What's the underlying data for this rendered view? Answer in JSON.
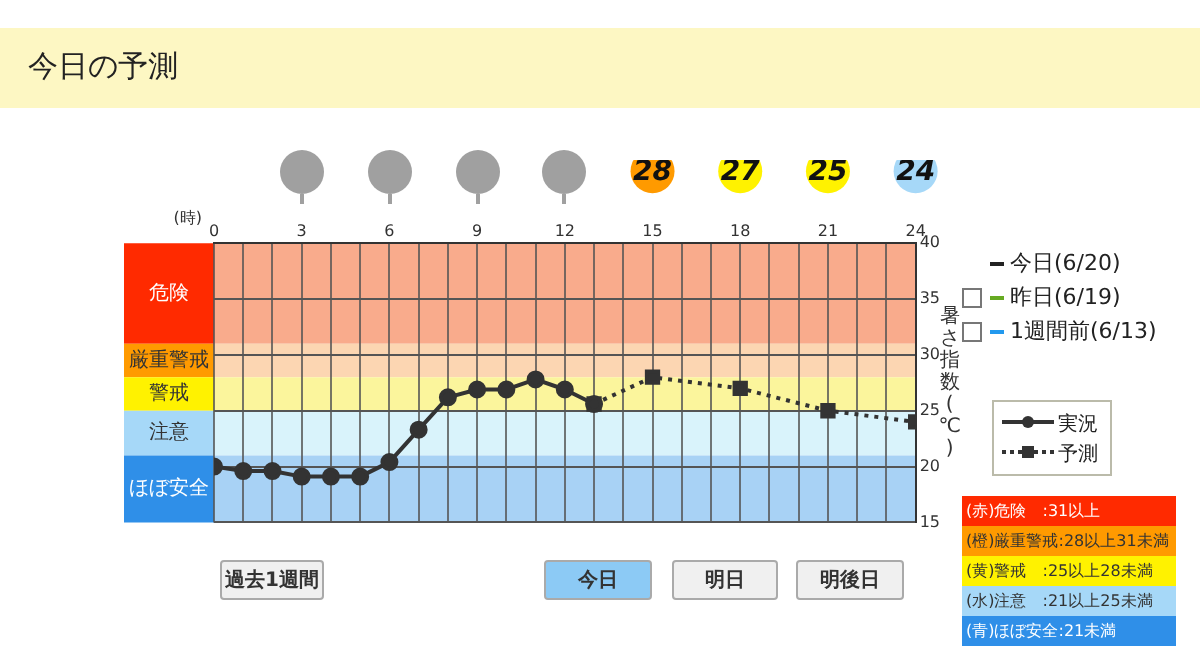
{
  "chart_data": {
    "type": "line",
    "title": "今日の予測",
    "xlabel": "(時)",
    "ylabel": "暑さ指数(℃)",
    "xlim": [
      0,
      24
    ],
    "xticks": [
      0,
      {
        "value": 1,
        "label": null
      },
      {
        "value": 2,
        "label": null
      },
      3,
      {
        "value": 4,
        "label": null
      },
      {
        "value": 5,
        "label": null
      },
      6,
      {
        "value": 7,
        "label": null
      },
      {
        "value": 8,
        "label": null
      },
      9,
      {
        "value": 10,
        "label": null
      },
      {
        "value": 11,
        "label": null
      },
      12,
      {
        "value": 13,
        "label": null
      },
      {
        "value": 14,
        "label": null
      },
      15,
      {
        "value": 16,
        "label": null
      },
      {
        "value": 17,
        "label": null
      },
      18,
      {
        "value": 19,
        "label": null
      },
      {
        "value": 20,
        "label": null
      },
      21,
      {
        "value": 22,
        "label": null
      },
      {
        "value": 23,
        "label": null
      },
      24
    ],
    "ylim": [
      15,
      40
    ],
    "yticks": [
      15,
      20,
      25,
      30,
      35,
      40
    ],
    "grid": true,
    "legend": "right",
    "series": [
      {
        "name": "実況",
        "color": "#333333",
        "marker": "circle",
        "line_style": "solid",
        "x": [
          0,
          1,
          2,
          3,
          4,
          5,
          6,
          7,
          8,
          9,
          10,
          11,
          12,
          13
        ],
        "values": [
          20,
          19.6,
          19.6,
          19.1,
          19.1,
          19.1,
          20.4,
          23.3,
          26.2,
          26.9,
          26.9,
          27.8,
          26.9,
          25.6
        ]
      },
      {
        "name": "予測",
        "color": "#333333",
        "marker": "square",
        "line_style": "dotted",
        "x": [
          13,
          15,
          18,
          21,
          24
        ],
        "values": [
          25.6,
          28,
          27,
          25,
          24
        ]
      }
    ],
    "bands": [
      {
        "axis": "y",
        "from": 31,
        "to": 40,
        "label": "危険",
        "color": "#f9ab8c"
      },
      {
        "axis": "y",
        "from": 28,
        "to": 31,
        "label": "厳重警戒",
        "color": "#fcd6b2"
      },
      {
        "axis": "y",
        "from": 25,
        "to": 28,
        "label": "警戒",
        "color": "#fbf59c"
      },
      {
        "axis": "y",
        "from": 21,
        "to": 25,
        "label": "注意",
        "color": "#d9f3fb"
      },
      {
        "axis": "y",
        "from": 15,
        "to": 21,
        "label": "ほぼ安全",
        "color": "#a8d2f5"
      }
    ],
    "annotations": [
      "今日(6/20)",
      "昨日(6/19)",
      "1週間前(6/13)",
      "(赤)危険　:31以上",
      "(橙)厳重警戒:28以上31未満",
      "(黄)警戒　:25以上28未満",
      "(水)注意　:21以上25未満",
      "(青)ほぼ安全:21未満",
      "過去1週間",
      "今日",
      "明日",
      "明後日",
      "28",
      "27",
      "25",
      "24"
    ]
  }
}
